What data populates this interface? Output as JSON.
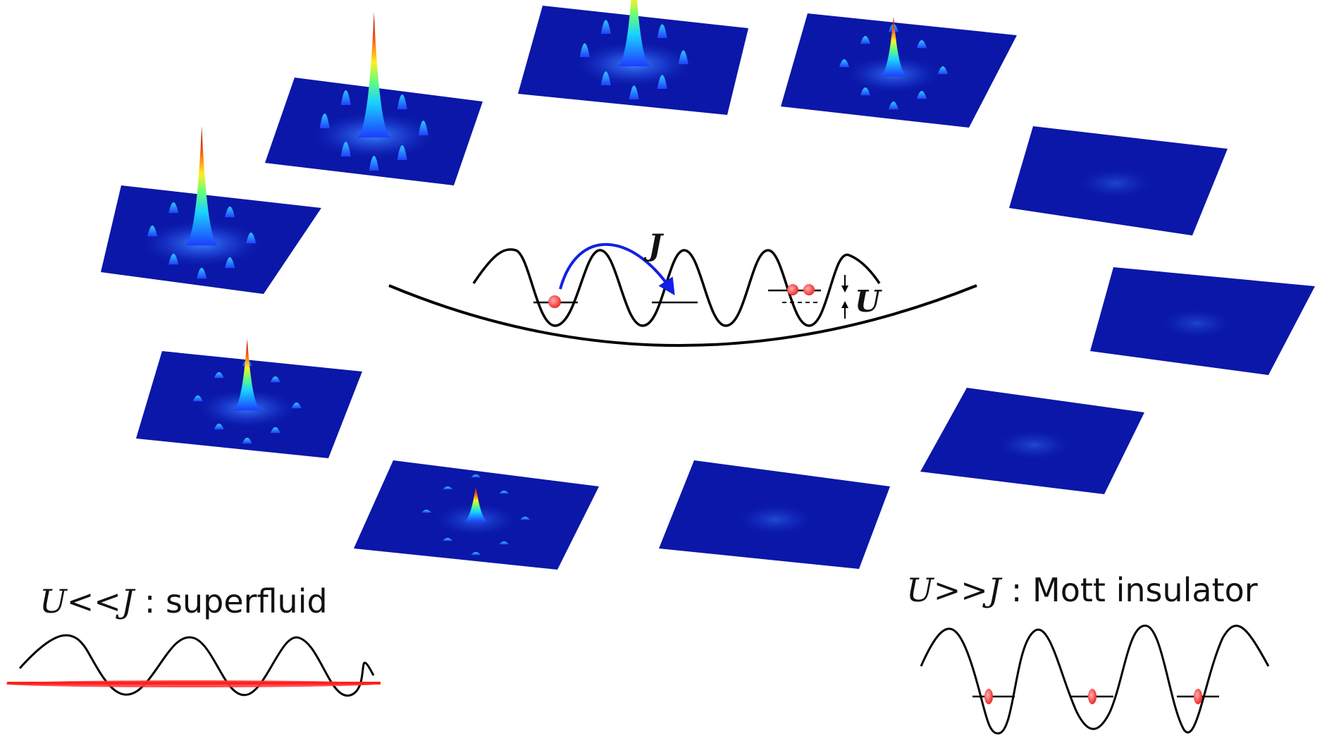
{
  "panels": [
    {
      "name": "panel-1",
      "peak": 0.95,
      "satellites": 0.55
    },
    {
      "name": "panel-2",
      "peak": 1.0,
      "satellites": 0.75
    },
    {
      "name": "panel-3",
      "peak": 0.9,
      "satellites": 0.7
    },
    {
      "name": "panel-4",
      "peak": 0.45,
      "satellites": 0.4
    },
    {
      "name": "panel-5",
      "peak": 0.08,
      "satellites": 0.0
    },
    {
      "name": "panel-6",
      "peak": 0.06,
      "satellites": 0.0
    },
    {
      "name": "panel-7",
      "peak": 0.1,
      "satellites": 0.0
    },
    {
      "name": "panel-8",
      "peak": 0.12,
      "satellites": 0.0
    },
    {
      "name": "panel-9",
      "peak": 0.25,
      "satellites": 0.15
    },
    {
      "name": "panel-10",
      "peak": 0.55,
      "satellites": 0.3
    }
  ],
  "center": {
    "hopping_symbol": "J",
    "interaction_symbol": "U"
  },
  "left_label": {
    "math": "U<<J",
    "separator": " : ",
    "text": "superfluid"
  },
  "right_label": {
    "math": "U>>J",
    "separator": " : ",
    "text": "Mott insulator"
  },
  "colors": {
    "panel": "#0a17a8",
    "atom": "#ff4a4a",
    "hop_arrow": "#1020e6",
    "line": "#000000"
  }
}
